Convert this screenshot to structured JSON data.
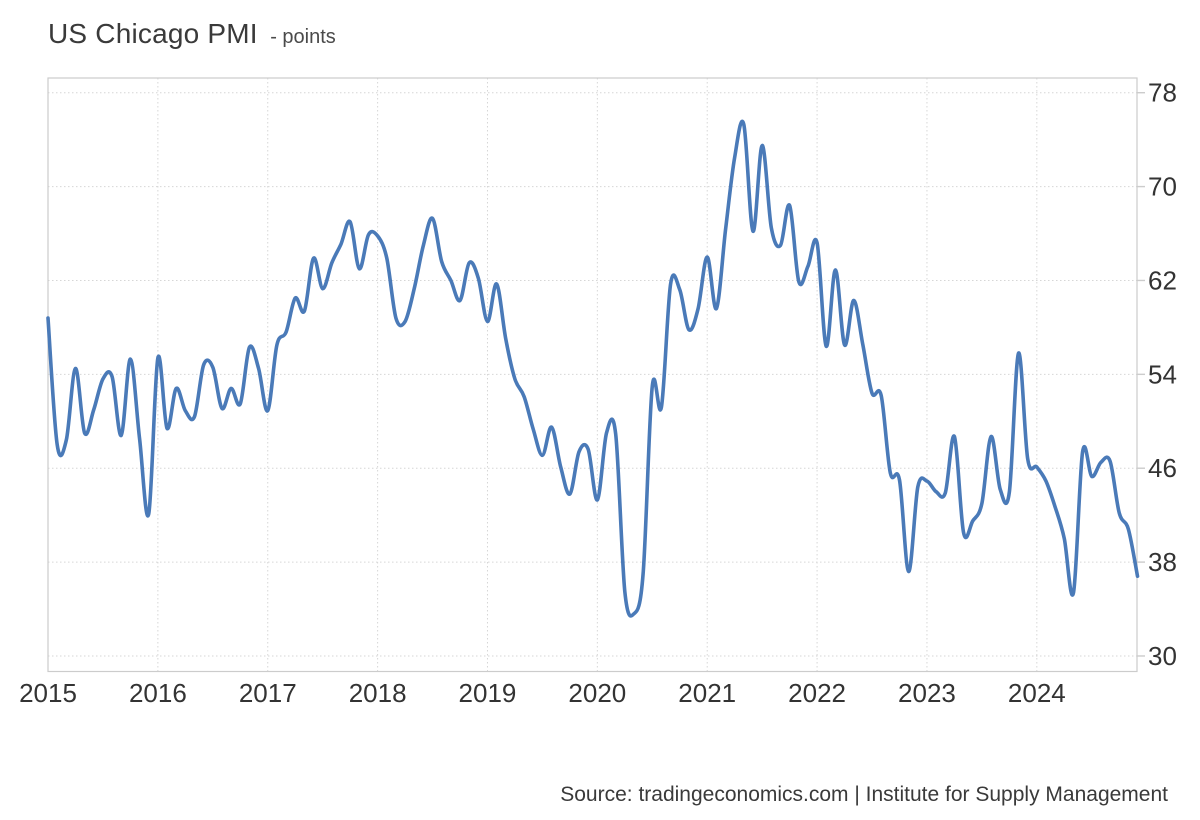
{
  "header": {
    "title": "US Chicago PMI",
    "subtitle": "- points"
  },
  "footer": {
    "source_text": "Source: tradingeconomics.com | Institute for Supply Management"
  },
  "chart_data": {
    "type": "line",
    "title": "US Chicago PMI",
    "unit": "points",
    "series": [
      {
        "name": "US Chicago PMI",
        "start": "2015-01",
        "end": "2024-12",
        "frequency": "monthly",
        "values": [
          58.8,
          48.0,
          48.4,
          54.5,
          49.0,
          51.0,
          53.6,
          53.8,
          48.8,
          55.3,
          48.5,
          42.1,
          55.4,
          49.4,
          52.8,
          50.9,
          50.4,
          54.8,
          54.6,
          51.1,
          52.8,
          51.5,
          56.3,
          54.5,
          50.9,
          56.5,
          57.6,
          60.5,
          59.4,
          63.9,
          61.3,
          63.5,
          65.1,
          67.0,
          63.0,
          65.9,
          65.8,
          63.9,
          58.8,
          58.5,
          61.3,
          65.0,
          67.3,
          63.6,
          62.0,
          60.3,
          63.5,
          62.2,
          58.5,
          61.7,
          57.0,
          53.6,
          52.1,
          49.3,
          47.1,
          49.5,
          46.1,
          43.8,
          47.4,
          47.6,
          43.3,
          49.0,
          48.9,
          35.5,
          33.6,
          37.0,
          53.0,
          51.2,
          61.7,
          61.2,
          57.8,
          59.6,
          64.0,
          59.6,
          66.3,
          72.5,
          75.3,
          66.2,
          73.5,
          66.5,
          65.0,
          68.4,
          61.9,
          63.2,
          65.2,
          56.4,
          62.9,
          56.5,
          60.3,
          56.5,
          52.4,
          52.2,
          45.6,
          45.0,
          37.2,
          44.4,
          44.9,
          44.0,
          43.9,
          48.7,
          40.5,
          41.5,
          43.0,
          48.7,
          44.2,
          44.0,
          55.8,
          46.8,
          46.1,
          44.9,
          42.7,
          40.0,
          35.4,
          47.4,
          45.3,
          46.5,
          46.6,
          42.2,
          40.8,
          36.8
        ]
      }
    ],
    "x_tick_labels": [
      "2015",
      "2016",
      "2017",
      "2018",
      "2019",
      "2020",
      "2021",
      "2022",
      "2023",
      "2024"
    ],
    "y_tick_labels": [
      "78",
      "70",
      "62",
      "54",
      "46",
      "38",
      "30"
    ],
    "y_tick_values": [
      78,
      70,
      62,
      54,
      46,
      38,
      30
    ],
    "ylim": [
      28.7,
      79.3
    ],
    "grid": "dotted",
    "legend": "none",
    "colors": {
      "line": "#4a7ab8",
      "grid": "#d6d6d6",
      "border": "#cccccc",
      "tick_text": "#333333",
      "title_text": "#3a3a3a",
      "background": "#ffffff"
    }
  }
}
